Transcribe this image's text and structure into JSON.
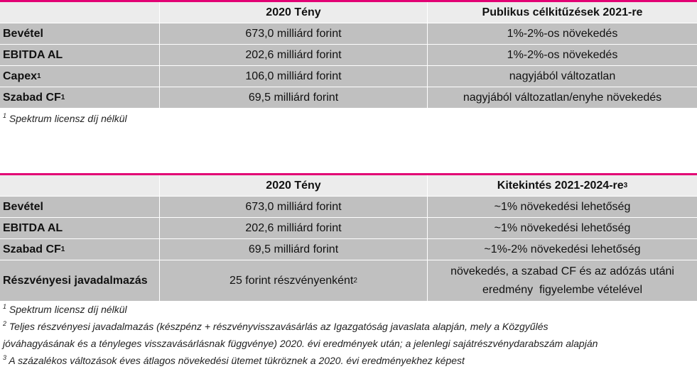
{
  "table1": {
    "headers": [
      "",
      "2020 Tény",
      "Publikus célkitűzések 2021-re"
    ],
    "rows": [
      {
        "label": "Bevétel",
        "sup": "",
        "actual": "673,0 milliárd forint",
        "target": "1%-2%-os növekedés"
      },
      {
        "label": "EBITDA AL",
        "sup": "",
        "actual": "202,6 milliárd forint",
        "target": "1%-2%-os növekedés"
      },
      {
        "label": "Capex",
        "sup": "1",
        "actual": "106,0 milliárd forint",
        "target": "nagyjából változatlan"
      },
      {
        "label": "Szabad CF",
        "sup": "1",
        "actual": "69,5 milliárd forint",
        "target": "nagyjából változatlan/enyhe növekedés"
      }
    ],
    "footnotes": [
      {
        "num": "1",
        "text": "Spektrum licensz díj nélkül"
      }
    ]
  },
  "table2": {
    "headers": [
      "",
      "2020 Tény",
      "Kitekintés 2021-2024-re"
    ],
    "header_sup": "3",
    "rows": [
      {
        "label": "Bevétel",
        "sup": "",
        "actual": "673,0 milliárd forint",
        "actual_sup": "",
        "outlook": "~1% növekedési lehetőség"
      },
      {
        "label": "EBITDA AL",
        "sup": "",
        "actual": "202,6 milliárd forint",
        "actual_sup": "",
        "outlook": "~1% növekedési lehetőség"
      },
      {
        "label": "Szabad CF",
        "sup": "1",
        "actual": "69,5 milliárd forint",
        "actual_sup": "",
        "outlook": "~1%-2% növekedési lehetőség"
      },
      {
        "label": "Részvényesi javadalmazás",
        "sup": "",
        "actual": "25 forint részvényenként",
        "actual_sup": "2",
        "outlook": "növekedés, a szabad CF és az adózás utáni eredmény  figyelembe vételével"
      }
    ],
    "footnotes": [
      {
        "num": "1",
        "text": "Spektrum licensz díj nélkül"
      },
      {
        "num": "2",
        "text": "Teljes részvényesi javadalmazás (készpénz + részvényvisszavásárlás az Igazgatóság javaslata alapján, mely a Közgyűlés"
      },
      {
        "num": "",
        "text": "jóváhagyásának és a tényleges visszavásárlásnak függvénye) 2020. évi eredmények után; a jelenlegi sajátrészvénydarabszám alapján"
      },
      {
        "num": "3",
        "text": "A százalékos változások éves átlagos növekedési ütemet tükröznek a 2020. évi eredményekhez képest"
      }
    ]
  },
  "colors": {
    "accent": "#e20074",
    "row_bg": "#c0c0c0",
    "header_bg": "#ececec"
  }
}
